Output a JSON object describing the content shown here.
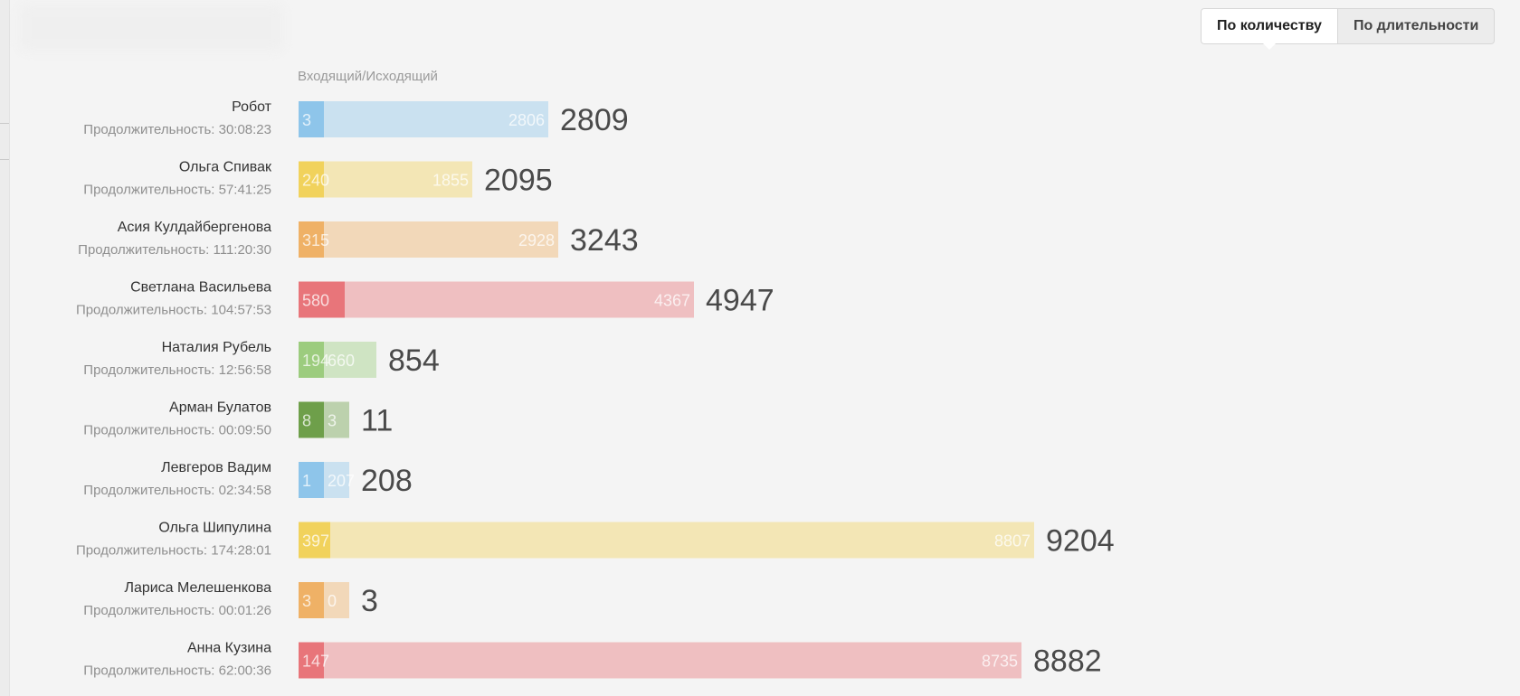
{
  "toggle": {
    "by_count": "По количеству",
    "by_duration": "По длительности",
    "active": "by_count"
  },
  "chart_data": {
    "type": "bar",
    "orientation": "horizontal",
    "stacked": true,
    "column_header": "Входящий/Исходящий",
    "duration_label": "Продолжительность:",
    "rows": [
      {
        "name": "Робот",
        "duration": "30:08:23",
        "incoming": 3,
        "outgoing": 2806,
        "total": 2809,
        "color": "#8ec5ea"
      },
      {
        "name": "Ольга Спивак",
        "duration": "57:41:25",
        "incoming": 240,
        "outgoing": 1855,
        "total": 2095,
        "color": "#f1d25c"
      },
      {
        "name": "Асия Кулдайбергенова",
        "duration": "111:20:30",
        "incoming": 315,
        "outgoing": 2928,
        "total": 3243,
        "color": "#efb166"
      },
      {
        "name": "Светлана Васильева",
        "duration": "104:57:53",
        "incoming": 580,
        "outgoing": 4367,
        "total": 4947,
        "color": "#e8757a"
      },
      {
        "name": "Наталия Рубель",
        "duration": "12:56:58",
        "incoming": 194,
        "outgoing": 660,
        "total": 854,
        "color": "#9ccc7e"
      },
      {
        "name": "Арман Булатов",
        "duration": "00:09:50",
        "incoming": 8,
        "outgoing": 3,
        "total": 11,
        "color": "#6e9f4a"
      },
      {
        "name": "Левгеров Вадим",
        "duration": "02:34:58",
        "incoming": 1,
        "outgoing": 207,
        "total": 208,
        "color": "#8ec5ea"
      },
      {
        "name": "Ольга Шипулина",
        "duration": "174:28:01",
        "incoming": 397,
        "outgoing": 8807,
        "total": 9204,
        "color": "#f1d25c"
      },
      {
        "name": "Лариса Мелешенкова",
        "duration": "00:01:26",
        "incoming": 3,
        "outgoing": 0,
        "total": 3,
        "color": "#efb166"
      },
      {
        "name": "Анна Кузина",
        "duration": "62:00:36",
        "incoming": 147,
        "outgoing": 8735,
        "total": 8882,
        "color": "#e8757a"
      }
    ]
  }
}
